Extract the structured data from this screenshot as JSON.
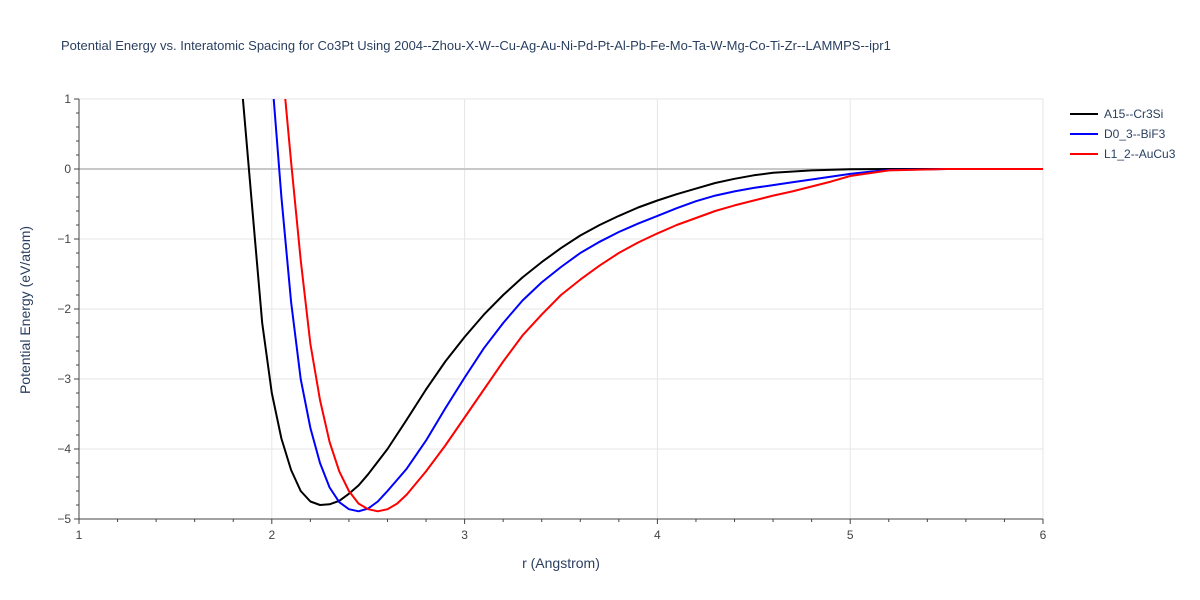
{
  "chart_data": {
    "type": "line",
    "title": "Potential Energy vs. Interatomic Spacing for Co3Pt Using 2004--Zhou-X-W--Cu-Ag-Au-Ni-Pd-Pt-Al-Pb-Fe-Mo-Ta-W-Mg-Co-Ti-Zr--LAMMPS--ipr1",
    "xlabel": "r (Angstrom)",
    "ylabel": "Potential Energy (eV/atom)",
    "xlim": [
      1,
      6
    ],
    "ylim": [
      -5,
      1
    ],
    "xticks": [
      1,
      2,
      3,
      4,
      5,
      6
    ],
    "yticks": [
      -5,
      -4,
      -3,
      -2,
      -1,
      0,
      1
    ],
    "xtick_labels": [
      "1",
      "2",
      "3",
      "4",
      "5",
      "6"
    ],
    "ytick_labels": [
      "−5",
      "−4",
      "−3",
      "−2",
      "−1",
      "0",
      "1"
    ],
    "grid": true,
    "legend_position": "top-right",
    "series": [
      {
        "name": "A15--Cr3Si",
        "color": "#000000",
        "x": [
          1.85,
          1.9,
          1.95,
          2.0,
          2.05,
          2.1,
          2.15,
          2.2,
          2.25,
          2.3,
          2.35,
          2.4,
          2.45,
          2.5,
          2.6,
          2.7,
          2.8,
          2.9,
          3.0,
          3.1,
          3.2,
          3.3,
          3.4,
          3.5,
          3.6,
          3.7,
          3.8,
          3.9,
          4.0,
          4.1,
          4.2,
          4.3,
          4.4,
          4.5,
          4.6,
          4.8,
          5.0,
          5.2,
          5.5,
          6.0
        ],
        "y": [
          1.0,
          -0.6,
          -2.2,
          -3.2,
          -3.85,
          -4.3,
          -4.6,
          -4.75,
          -4.8,
          -4.79,
          -4.74,
          -4.64,
          -4.52,
          -4.36,
          -4.0,
          -3.58,
          -3.15,
          -2.75,
          -2.4,
          -2.08,
          -1.8,
          -1.55,
          -1.33,
          -1.13,
          -0.95,
          -0.8,
          -0.67,
          -0.55,
          -0.45,
          -0.36,
          -0.28,
          -0.2,
          -0.14,
          -0.09,
          -0.055,
          -0.02,
          -0.005,
          0.0,
          0.0,
          0.0
        ]
      },
      {
        "name": "D0_3--BiF3",
        "color": "#0000ff",
        "x": [
          2.01,
          2.05,
          2.1,
          2.15,
          2.2,
          2.25,
          2.3,
          2.35,
          2.4,
          2.45,
          2.5,
          2.55,
          2.6,
          2.7,
          2.8,
          2.9,
          3.0,
          3.1,
          3.2,
          3.3,
          3.4,
          3.5,
          3.6,
          3.7,
          3.8,
          3.9,
          4.0,
          4.1,
          4.2,
          4.3,
          4.4,
          4.5,
          4.6,
          4.7,
          4.8,
          5.0,
          5.1,
          5.2,
          5.5,
          6.0
        ],
        "y": [
          1.0,
          -0.4,
          -1.9,
          -3.0,
          -3.7,
          -4.2,
          -4.55,
          -4.76,
          -4.86,
          -4.89,
          -4.85,
          -4.75,
          -4.6,
          -4.28,
          -3.88,
          -3.42,
          -2.98,
          -2.56,
          -2.2,
          -1.88,
          -1.62,
          -1.4,
          -1.2,
          -1.04,
          -0.9,
          -0.78,
          -0.67,
          -0.56,
          -0.46,
          -0.38,
          -0.32,
          -0.27,
          -0.23,
          -0.19,
          -0.15,
          -0.07,
          -0.04,
          -0.015,
          0.0,
          0.0
        ]
      },
      {
        "name": "L1_2--AuCu3",
        "color": "#ff0000",
        "x": [
          2.07,
          2.1,
          2.15,
          2.2,
          2.25,
          2.3,
          2.35,
          2.4,
          2.45,
          2.5,
          2.55,
          2.6,
          2.65,
          2.7,
          2.8,
          2.9,
          3.0,
          3.1,
          3.2,
          3.3,
          3.4,
          3.5,
          3.6,
          3.7,
          3.8,
          3.9,
          4.0,
          4.1,
          4.2,
          4.3,
          4.4,
          4.5,
          4.6,
          4.7,
          4.8,
          4.9,
          5.0,
          5.2,
          5.5,
          6.0
        ],
        "y": [
          1.0,
          0.1,
          -1.3,
          -2.5,
          -3.3,
          -3.9,
          -4.32,
          -4.6,
          -4.78,
          -4.86,
          -4.89,
          -4.86,
          -4.78,
          -4.65,
          -4.32,
          -3.95,
          -3.55,
          -3.15,
          -2.75,
          -2.38,
          -2.08,
          -1.8,
          -1.58,
          -1.38,
          -1.2,
          -1.05,
          -0.92,
          -0.8,
          -0.7,
          -0.6,
          -0.52,
          -0.45,
          -0.38,
          -0.32,
          -0.25,
          -0.18,
          -0.1,
          -0.02,
          0.0,
          0.0
        ]
      }
    ]
  }
}
